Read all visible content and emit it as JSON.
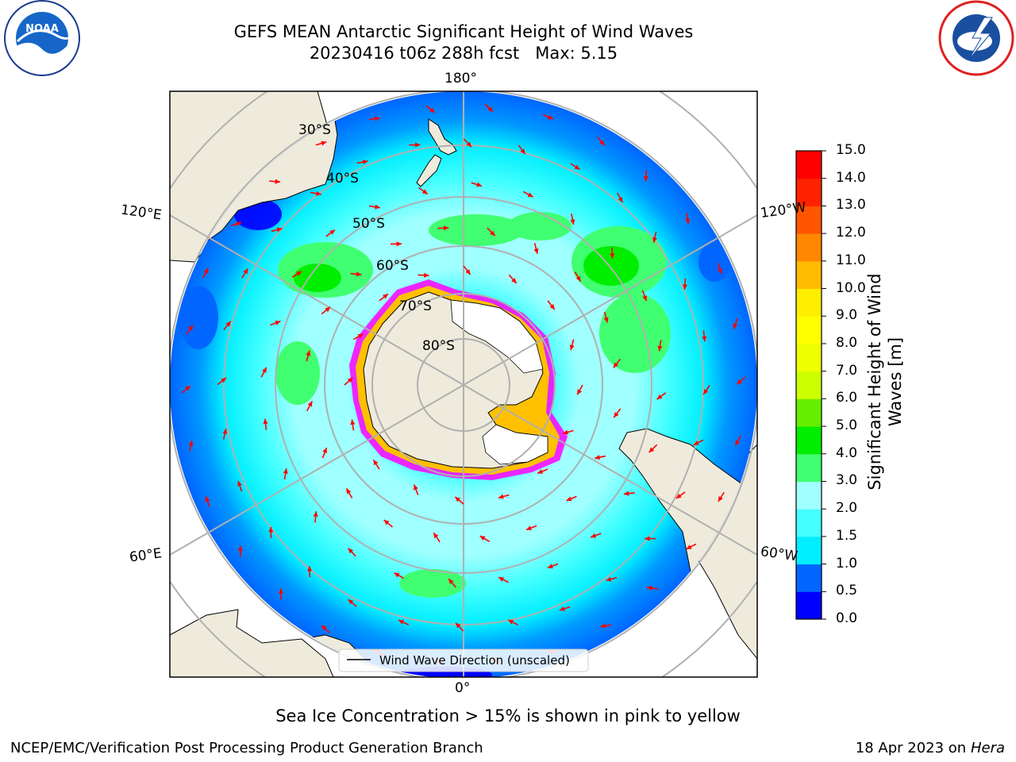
{
  "title": {
    "line1": "GEFS MEAN Antarctic Significant Height of Wind Waves",
    "line2": "20230416 t06z 288h fcst   Max: 5.15"
  },
  "map": {
    "projection": "south-polar-stereographic",
    "latitude_labels": [
      "30°S",
      "40°S",
      "50°S",
      "60°S",
      "70°S",
      "80°S"
    ],
    "longitude_labels": {
      "top": "180°",
      "bottom": "0°",
      "upper_left": "120°E",
      "lower_left": "60°E",
      "upper_right": "120°W",
      "lower_right": "60°W"
    },
    "legend_text": "Wind Wave Direction (unscaled)",
    "arrow_color": "#ff0000",
    "land_color": "#efebdc",
    "ice_edge_colors": [
      "#ff00ff",
      "#ffc000"
    ]
  },
  "colorbar": {
    "label": "Significant Height of Wind Waves [m]",
    "label_line1": "Significant Height of Wind",
    "label_line2": "Waves [m]",
    "ticks": [
      "0.0",
      "0.5",
      "1.0",
      "1.5",
      "2.0",
      "3.0",
      "4.0",
      "5.0",
      "6.0",
      "7.0",
      "8.0",
      "9.0",
      "10.0",
      "11.0",
      "12.0",
      "13.0",
      "14.0",
      "15.0"
    ],
    "colors": [
      "#0000ff",
      "#0066ff",
      "#00eeff",
      "#44ffff",
      "#a0ffff",
      "#40ff70",
      "#00ee00",
      "#66ee00",
      "#ccff00",
      "#eeff00",
      "#ffff00",
      "#ffee00",
      "#ffbb00",
      "#ff8800",
      "#ff5500",
      "#ff2200",
      "#ff0000"
    ],
    "max_value": 5.15
  },
  "caption": "Sea Ice Concentration > 15% is shown in pink to yellow",
  "footer": {
    "left": "NCEP/EMC/Verification Post Processing Product Generation Branch",
    "date": "18 Apr 2023 on",
    "machine": "Hera"
  },
  "logos": {
    "left": "noaa-logo",
    "left_text": "NOAA",
    "right": "nws-logo"
  }
}
